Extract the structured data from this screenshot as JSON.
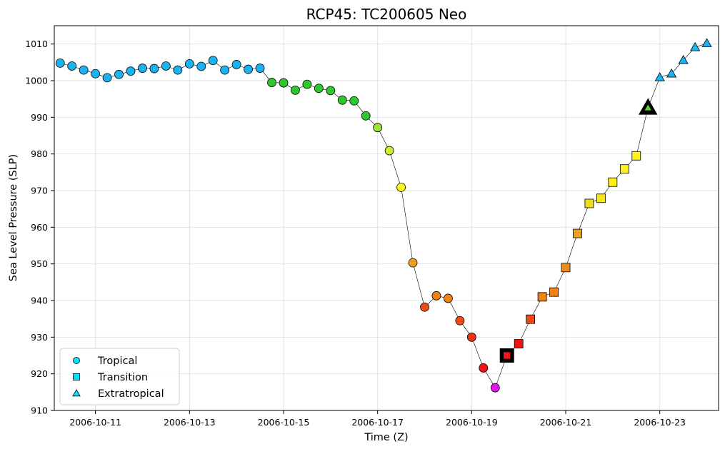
{
  "chart_data": {
    "type": "scatter",
    "title": "RCP45: TC200605 Neo",
    "xlabel": "Time (Z)",
    "ylabel": "Sea Level Pressure (SLP)",
    "ylim": [
      910,
      1015
    ],
    "yticks": [
      910,
      920,
      930,
      940,
      950,
      960,
      970,
      980,
      990,
      1000,
      1010
    ],
    "xlim": [
      "2006-10-10T03:00",
      "2006-10-24T06:00"
    ],
    "xticks": [
      "2006-10-11",
      "2006-10-13",
      "2006-10-15",
      "2006-10-17",
      "2006-10-19",
      "2006-10-21",
      "2006-10-23"
    ],
    "grid": true,
    "legend_position": "bottom-left",
    "legend": [
      {
        "label": "Tropical",
        "marker": "circle",
        "color": "#00e5ff"
      },
      {
        "label": "Transition",
        "marker": "square",
        "color": "#00e5ff"
      },
      {
        "label": "Extratropical",
        "marker": "triangle",
        "color": "#00e5ff"
      }
    ],
    "points": [
      {
        "t": "2006-10-10T06:00",
        "slp": 1004.8,
        "phase": "tropical",
        "color": "#1ab2f0"
      },
      {
        "t": "2006-10-10T12:00",
        "slp": 1004.0,
        "phase": "tropical",
        "color": "#1ab2f0"
      },
      {
        "t": "2006-10-10T18:00",
        "slp": 1002.9,
        "phase": "tropical",
        "color": "#1ab2f0"
      },
      {
        "t": "2006-10-11T00:00",
        "slp": 1001.9,
        "phase": "tropical",
        "color": "#1ab2f0"
      },
      {
        "t": "2006-10-11T06:00",
        "slp": 1000.8,
        "phase": "tropical",
        "color": "#1ab2f0"
      },
      {
        "t": "2006-10-11T12:00",
        "slp": 1001.7,
        "phase": "tropical",
        "color": "#1ab2f0"
      },
      {
        "t": "2006-10-11T18:00",
        "slp": 1002.6,
        "phase": "tropical",
        "color": "#1ab2f0"
      },
      {
        "t": "2006-10-12T00:00",
        "slp": 1003.4,
        "phase": "tropical",
        "color": "#1ab2f0"
      },
      {
        "t": "2006-10-12T06:00",
        "slp": 1003.3,
        "phase": "tropical",
        "color": "#1ab2f0"
      },
      {
        "t": "2006-10-12T12:00",
        "slp": 1004.0,
        "phase": "tropical",
        "color": "#1ab2f0"
      },
      {
        "t": "2006-10-12T18:00",
        "slp": 1002.9,
        "phase": "tropical",
        "color": "#1ab2f0"
      },
      {
        "t": "2006-10-13T00:00",
        "slp": 1004.6,
        "phase": "tropical",
        "color": "#1ab2f0"
      },
      {
        "t": "2006-10-13T06:00",
        "slp": 1003.9,
        "phase": "tropical",
        "color": "#1ab2f0"
      },
      {
        "t": "2006-10-13T12:00",
        "slp": 1005.5,
        "phase": "tropical",
        "color": "#1ab2f0"
      },
      {
        "t": "2006-10-13T18:00",
        "slp": 1002.9,
        "phase": "tropical",
        "color": "#1ab2f0"
      },
      {
        "t": "2006-10-14T00:00",
        "slp": 1004.4,
        "phase": "tropical",
        "color": "#1ab2f0"
      },
      {
        "t": "2006-10-14T06:00",
        "slp": 1003.1,
        "phase": "tropical",
        "color": "#1ab2f0"
      },
      {
        "t": "2006-10-14T12:00",
        "slp": 1003.4,
        "phase": "tropical",
        "color": "#1ab2f0"
      },
      {
        "t": "2006-10-14T18:00",
        "slp": 999.5,
        "phase": "tropical",
        "color": "#2ec82e"
      },
      {
        "t": "2006-10-15T00:00",
        "slp": 999.4,
        "phase": "tropical",
        "color": "#2ec82e"
      },
      {
        "t": "2006-10-15T06:00",
        "slp": 997.4,
        "phase": "tropical",
        "color": "#2ec82e"
      },
      {
        "t": "2006-10-15T12:00",
        "slp": 999.0,
        "phase": "tropical",
        "color": "#2ec82e"
      },
      {
        "t": "2006-10-15T18:00",
        "slp": 997.9,
        "phase": "tropical",
        "color": "#2ec82e"
      },
      {
        "t": "2006-10-16T00:00",
        "slp": 997.3,
        "phase": "tropical",
        "color": "#2ec82e"
      },
      {
        "t": "2006-10-16T06:00",
        "slp": 994.7,
        "phase": "tropical",
        "color": "#2ec82e"
      },
      {
        "t": "2006-10-16T12:00",
        "slp": 994.5,
        "phase": "tropical",
        "color": "#2ec82e"
      },
      {
        "t": "2006-10-16T18:00",
        "slp": 990.4,
        "phase": "tropical",
        "color": "#2ec82e"
      },
      {
        "t": "2006-10-17T00:00",
        "slp": 987.2,
        "phase": "tropical",
        "color": "#9ae62e"
      },
      {
        "t": "2006-10-17T06:00",
        "slp": 980.9,
        "phase": "tropical",
        "color": "#c8f02e"
      },
      {
        "t": "2006-10-17T12:00",
        "slp": 970.9,
        "phase": "tropical",
        "color": "#ffff1e"
      },
      {
        "t": "2006-10-17T18:00",
        "slp": 950.3,
        "phase": "tropical",
        "color": "#f0a01e"
      },
      {
        "t": "2006-10-18T00:00",
        "slp": 938.2,
        "phase": "tropical",
        "color": "#f04b14"
      },
      {
        "t": "2006-10-18T06:00",
        "slp": 941.3,
        "phase": "tropical",
        "color": "#f08214"
      },
      {
        "t": "2006-10-18T12:00",
        "slp": 940.6,
        "phase": "tropical",
        "color": "#f08214"
      },
      {
        "t": "2006-10-18T18:00",
        "slp": 934.5,
        "phase": "tropical",
        "color": "#f04b14"
      },
      {
        "t": "2006-10-19T00:00",
        "slp": 930.0,
        "phase": "tropical",
        "color": "#f03214"
      },
      {
        "t": "2006-10-19T06:00",
        "slp": 921.6,
        "phase": "tropical",
        "color": "#f01414"
      },
      {
        "t": "2006-10-19T12:00",
        "slp": 916.2,
        "phase": "tropical",
        "color": "#e614e6"
      },
      {
        "t": "2006-10-19T18:00",
        "slp": 925.0,
        "phase": "transition",
        "color": "#f01414",
        "highlight": true
      },
      {
        "t": "2006-10-20T00:00",
        "slp": 928.2,
        "phase": "transition",
        "color": "#f01414"
      },
      {
        "t": "2006-10-20T06:00",
        "slp": 934.9,
        "phase": "transition",
        "color": "#f04b14"
      },
      {
        "t": "2006-10-20T12:00",
        "slp": 941.0,
        "phase": "transition",
        "color": "#f08214"
      },
      {
        "t": "2006-10-20T18:00",
        "slp": 942.3,
        "phase": "transition",
        "color": "#f08214"
      },
      {
        "t": "2006-10-21T00:00",
        "slp": 949.0,
        "phase": "transition",
        "color": "#f08c1e"
      },
      {
        "t": "2006-10-21T06:00",
        "slp": 958.3,
        "phase": "transition",
        "color": "#f0a01e"
      },
      {
        "t": "2006-10-21T12:00",
        "slp": 966.5,
        "phase": "transition",
        "color": "#f0dc1e"
      },
      {
        "t": "2006-10-21T18:00",
        "slp": 967.9,
        "phase": "transition",
        "color": "#f0e61e"
      },
      {
        "t": "2006-10-22T00:00",
        "slp": 972.3,
        "phase": "transition",
        "color": "#fff01e"
      },
      {
        "t": "2006-10-22T06:00",
        "slp": 975.9,
        "phase": "transition",
        "color": "#fff01e"
      },
      {
        "t": "2006-10-22T12:00",
        "slp": 979.5,
        "phase": "transition",
        "color": "#fff01e"
      },
      {
        "t": "2006-10-22T18:00",
        "slp": 992.6,
        "phase": "extratropical",
        "color": "#5ad22e",
        "highlight": true
      },
      {
        "t": "2006-10-23T00:00",
        "slp": 1000.9,
        "phase": "extratropical",
        "color": "#1ab2f0"
      },
      {
        "t": "2006-10-23T06:00",
        "slp": 1001.9,
        "phase": "extratropical",
        "color": "#1ab2f0"
      },
      {
        "t": "2006-10-23T12:00",
        "slp": 1005.6,
        "phase": "extratropical",
        "color": "#1ab2f0"
      },
      {
        "t": "2006-10-23T18:00",
        "slp": 1009.1,
        "phase": "extratropical",
        "color": "#1ab2f0"
      },
      {
        "t": "2006-10-24T00:00",
        "slp": 1010.2,
        "phase": "extratropical",
        "color": "#1ab2f0"
      }
    ]
  }
}
